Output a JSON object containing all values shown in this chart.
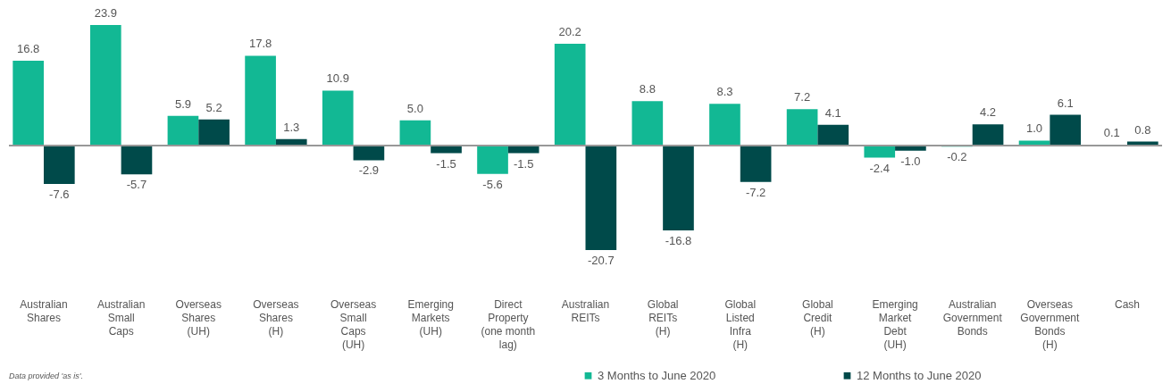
{
  "chart_data": {
    "type": "bar",
    "categories": [
      "Australian Shares",
      "Australian Small Caps",
      "Overseas Shares (UH)",
      "Overseas Shares (H)",
      "Overseas Small Caps (UH)",
      "Emerging Markets (UH)",
      "Direct Property (one month lag)",
      "Australian REITs",
      "Global REITs (H)",
      "Global Listed Infra (H)",
      "Global Credit (H)",
      "Emerging Market Debt (UH)",
      "Australian Government Bonds",
      "Overseas Government Bonds (H)",
      "Cash"
    ],
    "series": [
      {
        "name": "3 Months to June 2020",
        "color": "#12b894",
        "values": [
          16.8,
          23.9,
          5.9,
          17.8,
          10.9,
          5.0,
          -5.6,
          20.2,
          8.8,
          8.3,
          7.2,
          -2.4,
          -0.2,
          1.0,
          0.1
        ],
        "value_labels": [
          "16.8",
          "23.9",
          "5.9",
          "17.8",
          "10.9",
          "5.0",
          "-5.6",
          "20.2",
          "8.8",
          "8.3",
          "7.2",
          "-2.4",
          "-0.2",
          "1.0",
          "0.1"
        ]
      },
      {
        "name": "12 Months to June 2020",
        "color": "#004a4a",
        "values": [
          -7.6,
          -5.7,
          5.2,
          1.3,
          -2.9,
          -1.5,
          -1.5,
          -20.7,
          -16.8,
          -7.2,
          4.1,
          -1.0,
          4.2,
          6.1,
          0.8
        ],
        "value_labels": [
          "-7.6",
          "-5.7",
          "5.2",
          "1.3",
          "-2.9",
          "-1.5",
          "-1.5",
          "-20.7",
          "-16.8",
          "-7.2",
          "4.1",
          "-1.0",
          "4.2",
          "6.1",
          "0.8"
        ]
      }
    ],
    "legend": "bottom",
    "annotations": [
      "Data provided 'as is'."
    ]
  }
}
